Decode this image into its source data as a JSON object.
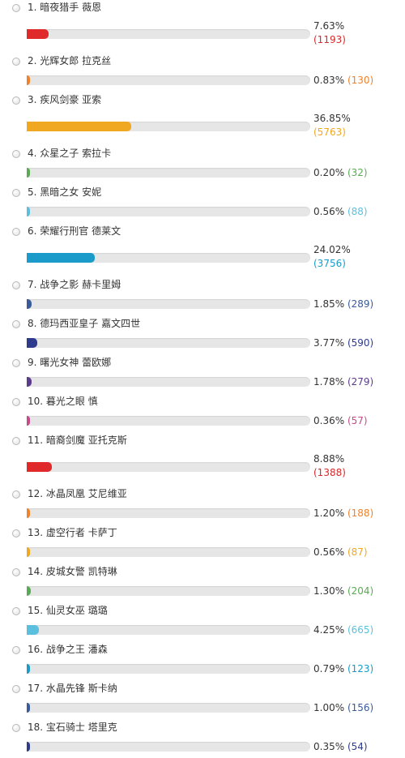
{
  "poll": {
    "items": [
      {
        "number": "1.",
        "name": "暗夜猎手 薇恩",
        "percent": "7.63%",
        "count": "(1193)",
        "fraction": 0.0763,
        "color": "#e0292a",
        "count_color": "#d9292a"
      },
      {
        "number": "2.",
        "name": "光辉女郎 拉克丝",
        "percent": "0.83%",
        "count": "(130)",
        "fraction": 0.0083,
        "color": "#f0822a",
        "count_color": "#f0822a"
      },
      {
        "number": "3.",
        "name": "疾风剑豪 亚索",
        "percent": "36.85%",
        "count": "(5763)",
        "fraction": 0.3685,
        "color": "#f0a822",
        "count_color": "#f0a822"
      },
      {
        "number": "4.",
        "name": "众星之子 索拉卡",
        "percent": "0.20%",
        "count": "(32)",
        "fraction": 0.002,
        "color": "#5aaa55",
        "count_color": "#5aaa55"
      },
      {
        "number": "5.",
        "name": "黑暗之女 安妮",
        "percent": "0.56%",
        "count": "(88)",
        "fraction": 0.0056,
        "color": "#5bc0de",
        "count_color": "#5bc0de"
      },
      {
        "number": "6.",
        "name": "荣耀行刑官 德莱文",
        "percent": "24.02%",
        "count": "(3756)",
        "fraction": 0.2402,
        "color": "#1a9bc9",
        "count_color": "#1a9bc9"
      },
      {
        "number": "7.",
        "name": "战争之影 赫卡里姆",
        "percent": "1.85%",
        "count": "(289)",
        "fraction": 0.0185,
        "color": "#3a5a9a",
        "count_color": "#3a5a9a"
      },
      {
        "number": "8.",
        "name": "德玛西亚皇子 嘉文四世",
        "percent": "3.77%",
        "count": "(590)",
        "fraction": 0.0377,
        "color": "#2e3a8c",
        "count_color": "#2e3a8c"
      },
      {
        "number": "9.",
        "name": "曙光女神 蕾欧娜",
        "percent": "1.78%",
        "count": "(279)",
        "fraction": 0.0178,
        "color": "#5b3b8c",
        "count_color": "#5b3b8c"
      },
      {
        "number": "10.",
        "name": "暮光之眼 慎",
        "percent": "0.36%",
        "count": "(57)",
        "fraction": 0.0036,
        "color": "#c44a8a",
        "count_color": "#c44a8a"
      },
      {
        "number": "11.",
        "name": "暗裔剑魔 亚托克斯",
        "percent": "8.88%",
        "count": "(1388)",
        "fraction": 0.0888,
        "color": "#e0292a",
        "count_color": "#d9292a"
      },
      {
        "number": "12.",
        "name": "冰晶凤凰 艾尼维亚",
        "percent": "1.20%",
        "count": "(188)",
        "fraction": 0.012,
        "color": "#f0822a",
        "count_color": "#f0822a"
      },
      {
        "number": "13.",
        "name": "虚空行者 卡萨丁",
        "percent": "0.56%",
        "count": "(87)",
        "fraction": 0.0056,
        "color": "#f0a822",
        "count_color": "#f0a822"
      },
      {
        "number": "14.",
        "name": "皮城女警 凯特琳",
        "percent": "1.30%",
        "count": "(204)",
        "fraction": 0.013,
        "color": "#5aaa55",
        "count_color": "#5aaa55"
      },
      {
        "number": "15.",
        "name": "仙灵女巫 璐璐",
        "percent": "4.25%",
        "count": "(665)",
        "fraction": 0.0425,
        "color": "#5bc0de",
        "count_color": "#5bc0de"
      },
      {
        "number": "16.",
        "name": "战争之王 潘森",
        "percent": "0.79%",
        "count": "(123)",
        "fraction": 0.0079,
        "color": "#1a9bc9",
        "count_color": "#1a9bc9"
      },
      {
        "number": "17.",
        "name": "水晶先锋 斯卡纳",
        "percent": "1.00%",
        "count": "(156)",
        "fraction": 0.01,
        "color": "#3a5a9a",
        "count_color": "#3a5a9a"
      },
      {
        "number": "18.",
        "name": "宝石骑士 塔里克",
        "percent": "0.35%",
        "count": "(54)",
        "fraction": 0.0035,
        "color": "#2e3a8c",
        "count_color": "#2e3a8c"
      }
    ]
  }
}
